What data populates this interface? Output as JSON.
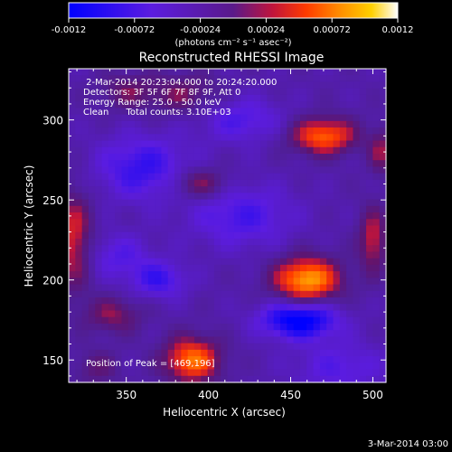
{
  "chart_data": {
    "type": "heatmap",
    "title": "Reconstructed RHESSI Image",
    "xlabel": "Heliocentric X (arcsec)",
    "ylabel": "Heliocentric Y (arcsec)",
    "xlim": [
      315,
      508
    ],
    "ylim": [
      136,
      332
    ],
    "x_ticks": [
      350,
      400,
      450,
      500
    ],
    "y_ticks": [
      150,
      200,
      250,
      300
    ],
    "colorbar": {
      "range": [
        -0.0012,
        0.0012
      ],
      "ticks": [
        "-0.0012",
        "-0.00072",
        "-0.00024",
        "0.00024",
        "0.00072",
        "0.0012"
      ],
      "tick_values": [
        -0.0012,
        -0.00072,
        -0.00024,
        0.00024,
        0.00072,
        0.0012
      ],
      "unit_label": "(photons cm⁻² s⁻¹ asec⁻²)"
    },
    "sources": [
      {
        "x": 460,
        "y": 200,
        "sx": 14,
        "sy": 10,
        "amp": 0.00112
      },
      {
        "x": 470,
        "y": 290,
        "sx": 14,
        "sy": 8,
        "amp": 0.0009
      },
      {
        "x": 390,
        "y": 150,
        "sx": 12,
        "sy": 10,
        "amp": 0.00095
      },
      {
        "x": 318,
        "y": 225,
        "sx": 8,
        "sy": 22,
        "amp": 0.00065
      },
      {
        "x": 395,
        "y": 260,
        "sx": 12,
        "sy": 7,
        "amp": 0.00055
      },
      {
        "x": 342,
        "y": 178,
        "sx": 12,
        "sy": 8,
        "amp": 0.00045
      },
      {
        "x": 385,
        "y": 316,
        "sx": 16,
        "sy": 9,
        "amp": 0.0004
      },
      {
        "x": 350,
        "y": 318,
        "sx": 12,
        "sy": 8,
        "amp": 0.00035
      },
      {
        "x": 500,
        "y": 225,
        "sx": 6,
        "sy": 14,
        "amp": 0.0006
      },
      {
        "x": 505,
        "y": 280,
        "sx": 5,
        "sy": 10,
        "amp": 0.00045
      },
      {
        "x": 332,
        "y": 145,
        "sx": 10,
        "sy": 8,
        "amp": 0.0003
      },
      {
        "x": 455,
        "y": 175,
        "sx": 16,
        "sy": 8,
        "amp": -0.00105
      },
      {
        "x": 420,
        "y": 240,
        "sx": 22,
        "sy": 14,
        "amp": -0.0005
      },
      {
        "x": 360,
        "y": 270,
        "sx": 20,
        "sy": 14,
        "amp": -0.0006
      },
      {
        "x": 420,
        "y": 300,
        "sx": 18,
        "sy": 10,
        "amp": -0.00045
      },
      {
        "x": 480,
        "y": 145,
        "sx": 20,
        "sy": 12,
        "amp": -0.0004
      },
      {
        "x": 345,
        "y": 215,
        "sx": 14,
        "sy": 10,
        "amp": -0.0004
      },
      {
        "x": 370,
        "y": 200,
        "sx": 12,
        "sy": 8,
        "amp": -0.00055
      }
    ],
    "baseline": -0.00025,
    "peak": [
      469,
      196
    ]
  },
  "annotations": {
    "time_range": " 2-Mar-2014 20:23:04.000 to 20:24:20.000",
    "detectors": "Detectors: 3F 5F 6F 7F 8F 9F, Att 0",
    "energy": "Energy Range: 25.0 - 50.0 keV",
    "clean": "Clean      Total counts: 3.10E+03",
    "peak": "Position of Peak = [469,196]"
  },
  "footer": {
    "date": "3-Mar-2014 03:00"
  }
}
